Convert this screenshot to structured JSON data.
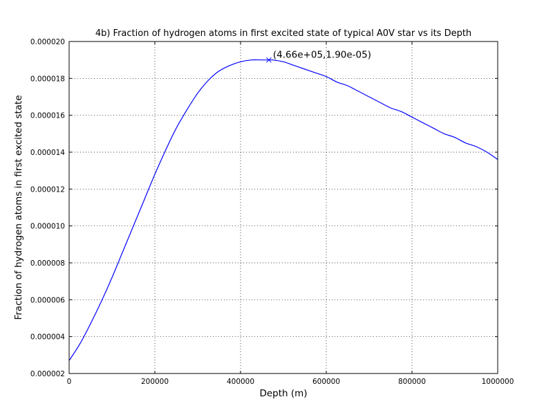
{
  "chart_data": {
    "type": "line",
    "title": "4b) Fraction of hydrogen atoms in first excited state of typical A0V star vs its Depth",
    "xlabel": "Depth (m)",
    "ylabel": "Fraction of hydrogen atoms in first excited state",
    "xlim": [
      0,
      1000000
    ],
    "ylim": [
      2e-06,
      2e-05
    ],
    "x_tick_labels": [
      "0",
      "200000",
      "400000",
      "600000",
      "800000",
      "1000000"
    ],
    "y_tick_labels": [
      "0.000002",
      "0.000004",
      "0.000006",
      "0.000008",
      "0.000010",
      "0.000012",
      "0.000014",
      "0.000016",
      "0.000018",
      "0.000020"
    ],
    "grid": true,
    "series_color": "#0000ff",
    "series": [
      {
        "x": [
          0,
          25000,
          50000,
          75000,
          100000,
          125000,
          150000,
          175000,
          200000,
          225000,
          250000,
          275000,
          300000,
          325000,
          350000,
          375000,
          400000,
          425000,
          450000,
          466000,
          475000,
          500000,
          525000,
          550000,
          575000,
          600000,
          625000,
          650000,
          675000,
          700000,
          725000,
          750000,
          775000,
          800000,
          825000,
          850000,
          875000,
          900000,
          925000,
          950000,
          975000,
          1000000
        ],
        "y": [
          2.7e-06,
          3.6e-06,
          4.7e-06,
          5.9e-06,
          7.2e-06,
          8.6e-06,
          1e-05,
          1.14e-05,
          1.28e-05,
          1.41e-05,
          1.53e-05,
          1.63e-05,
          1.72e-05,
          1.79e-05,
          1.84e-05,
          1.87e-05,
          1.89e-05,
          1.9e-05,
          1.9e-05,
          1.9e-05,
          1.9e-05,
          1.89e-05,
          1.87e-05,
          1.85e-05,
          1.83e-05,
          1.81e-05,
          1.78e-05,
          1.76e-05,
          1.73e-05,
          1.7e-05,
          1.67e-05,
          1.64e-05,
          1.62e-05,
          1.59e-05,
          1.56e-05,
          1.53e-05,
          1.5e-05,
          1.48e-05,
          1.45e-05,
          1.43e-05,
          1.4e-05,
          1.36e-05
        ]
      }
    ],
    "annotation": {
      "text": "(4.66e+05,1.90e-05)",
      "x": 466000,
      "y": 1.9e-05,
      "marker": "x"
    }
  }
}
